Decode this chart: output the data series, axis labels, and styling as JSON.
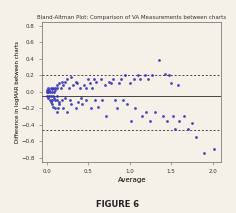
{
  "title": "Bland-Altman Plot: Comparison of VA Measurements between charts",
  "xlabel": "Average",
  "ylabel": "Difference in logMAR between charts",
  "xlim": [
    -0.05,
    2.1
  ],
  "ylim": [
    -0.85,
    0.85
  ],
  "xticks": [
    0.0,
    0.5,
    1.0,
    1.5,
    2.0
  ],
  "yticks": [
    -0.8,
    -0.6,
    -0.4,
    -0.2,
    0.0,
    0.2,
    0.4,
    0.6,
    0.8
  ],
  "mean_line": -0.05,
  "loa_upper": 0.2,
  "loa_lower": -0.47,
  "dot_color": "#3333bb",
  "line_color": "#444444",
  "dot_size": 4,
  "figure_label": "FIGURE 6",
  "bg_color": "#f5f0e8",
  "scatter_x": [
    0.0,
    0.0,
    0.0,
    0.02,
    0.02,
    0.02,
    0.03,
    0.03,
    0.04,
    0.04,
    0.05,
    0.05,
    0.05,
    0.06,
    0.06,
    0.07,
    0.07,
    0.08,
    0.08,
    0.08,
    0.09,
    0.09,
    0.1,
    0.1,
    0.1,
    0.1,
    0.12,
    0.12,
    0.12,
    0.13,
    0.13,
    0.14,
    0.15,
    0.15,
    0.15,
    0.17,
    0.18,
    0.18,
    0.2,
    0.2,
    0.22,
    0.22,
    0.25,
    0.25,
    0.27,
    0.28,
    0.3,
    0.3,
    0.32,
    0.35,
    0.35,
    0.37,
    0.38,
    0.4,
    0.42,
    0.43,
    0.45,
    0.47,
    0.48,
    0.5,
    0.52,
    0.53,
    0.55,
    0.57,
    0.58,
    0.6,
    0.62,
    0.65,
    0.67,
    0.7,
    0.72,
    0.75,
    0.77,
    0.8,
    0.82,
    0.85,
    0.87,
    0.9,
    0.92,
    0.95,
    0.97,
    1.0,
    1.02,
    1.05,
    1.07,
    1.1,
    1.12,
    1.15,
    1.18,
    1.2,
    1.22,
    1.25,
    1.27,
    1.3,
    1.35,
    1.4,
    1.42,
    1.45,
    1.48,
    1.5,
    1.52,
    1.55,
    1.58,
    1.6,
    1.65,
    1.7,
    1.75,
    1.8,
    1.9,
    2.02
  ],
  "scatter_y": [
    0.0,
    -0.05,
    0.02,
    0.0,
    -0.08,
    0.05,
    -0.05,
    0.02,
    0.0,
    -0.1,
    0.05,
    -0.05,
    -0.12,
    0.03,
    -0.15,
    0.0,
    -0.1,
    0.05,
    -0.05,
    -0.18,
    0.0,
    -0.08,
    0.05,
    -0.1,
    -0.2,
    0.02,
    0.08,
    -0.1,
    -0.25,
    0.05,
    -0.05,
    -0.2,
    0.1,
    -0.12,
    -0.15,
    0.05,
    -0.1,
    0.12,
    0.08,
    -0.2,
    0.12,
    -0.08,
    0.15,
    -0.25,
    0.05,
    -0.1,
    0.18,
    -0.15,
    0.08,
    0.12,
    -0.2,
    0.1,
    -0.12,
    0.05,
    -0.08,
    -0.15,
    0.08,
    0.05,
    -0.1,
    0.15,
    0.1,
    -0.2,
    0.05,
    0.15,
    -0.1,
    0.12,
    -0.18,
    0.15,
    -0.1,
    0.08,
    -0.3,
    0.12,
    0.1,
    0.15,
    -0.1,
    -0.2,
    0.1,
    0.15,
    -0.1,
    0.2,
    -0.15,
    0.1,
    -0.35,
    0.15,
    -0.2,
    0.2,
    0.15,
    -0.3,
    0.2,
    -0.25,
    0.15,
    -0.35,
    0.2,
    -0.25,
    0.38,
    -0.3,
    0.22,
    -0.35,
    0.2,
    0.1,
    -0.3,
    -0.45,
    0.08,
    -0.35,
    -0.3,
    -0.45,
    -0.38,
    -0.55,
    -0.75,
    -0.7
  ]
}
